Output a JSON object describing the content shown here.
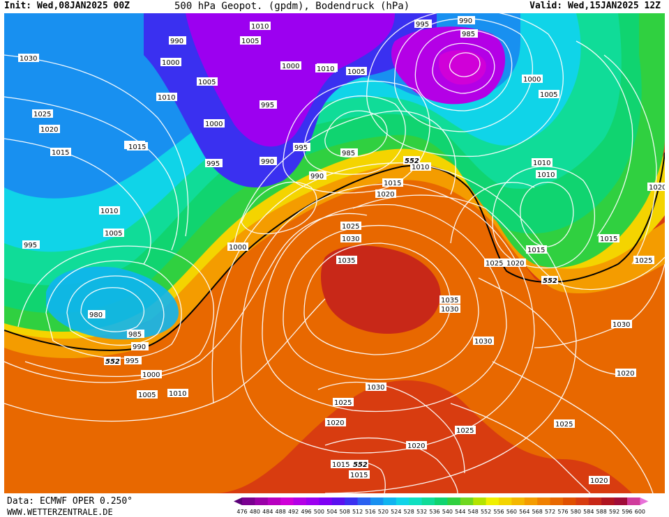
{
  "header": {
    "init": "Init: Wed,08JAN2025 00Z",
    "title": "500 hPa Geopot. (gpdm), Bodendruck (hPa)",
    "valid": "Valid: Wed,15JAN2025 12Z"
  },
  "footer": {
    "data_source": "Data: ECMWF OPER 0.250°",
    "website": "WWW.WETTERZENTRALE.DE"
  },
  "legend": {
    "ticks": [
      "476",
      "480",
      "484",
      "488",
      "492",
      "496",
      "500",
      "504",
      "508",
      "512",
      "516",
      "520",
      "524",
      "528",
      "532",
      "536",
      "540",
      "544",
      "548",
      "552",
      "556",
      "560",
      "564",
      "568",
      "572",
      "576",
      "580",
      "584",
      "588",
      "592",
      "596",
      "600"
    ],
    "colors": [
      "#5a0078",
      "#7a0090",
      "#9a00a8",
      "#b800c0",
      "#d000d8",
      "#b400e6",
      "#9c00f0",
      "#7e00f4",
      "#5a10f0",
      "#3a30f0",
      "#2a60f0",
      "#1890f0",
      "#10b4f0",
      "#10d4e8",
      "#10e0c0",
      "#10dc98",
      "#10d470",
      "#30d040",
      "#70d820",
      "#b4e400",
      "#f0f000",
      "#f4d400",
      "#f4b800",
      "#f49c00",
      "#f08000",
      "#e86800",
      "#e05000",
      "#d83c10",
      "#c82818",
      "#b01420",
      "#a00c38",
      "#d03c9c",
      "#e870d8"
    ]
  },
  "map": {
    "contour_field": "500 hPa Geopot. (gpdm)",
    "isobar_field": "Bodendruck (hPa)",
    "pressure_labels": [
      "1030",
      "1025",
      "1020",
      "1015",
      "1010",
      "1005",
      "995",
      "990",
      "1000",
      "1010",
      "1005",
      "1000",
      "995",
      "1000",
      "995",
      "990",
      "985",
      "990",
      "995",
      "1010",
      "1005",
      "995",
      "985",
      "990",
      "1000",
      "1005",
      "1010",
      "1015",
      "1020",
      "1025",
      "1030",
      "1035",
      "1035",
      "1030",
      "1025",
      "1020",
      "1015",
      "1010",
      "1010",
      "1015",
      "1020",
      "1025",
      "1030",
      "980",
      "985",
      "990",
      "995",
      "1000",
      "1005",
      "1010",
      "1030",
      "1025",
      "1020",
      "1025",
      "1020",
      "1015",
      "1015",
      "1020",
      "1020",
      "1030",
      "1015",
      "1020",
      "1025",
      "1005",
      "1000",
      "1005",
      "1010",
      "1020",
      "1015"
    ],
    "contour_552_label": "552"
  }
}
